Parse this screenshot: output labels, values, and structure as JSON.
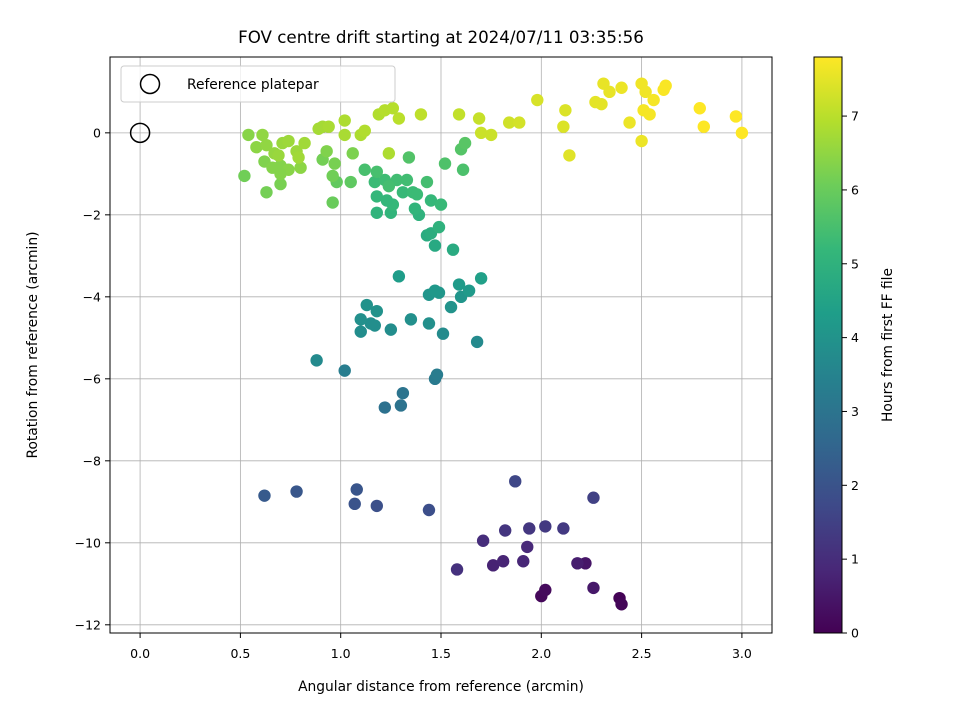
{
  "chart_data": {
    "type": "scatter",
    "title": "FOV centre drift starting at 2024/07/11 03:35:56",
    "xlabel": "Angular distance from reference (arcmin)",
    "ylabel": "Rotation from reference (arcmin)",
    "xlim": [
      -0.15,
      3.15
    ],
    "ylim": [
      -12.2,
      1.85
    ],
    "xticks": [
      0.0,
      0.5,
      1.0,
      1.5,
      2.0,
      2.5,
      3.0
    ],
    "xtick_labels": [
      "0.0",
      "0.5",
      "1.0",
      "1.5",
      "2.0",
      "2.5",
      "3.0"
    ],
    "yticks": [
      0,
      -2,
      -4,
      -6,
      -8,
      -10,
      -12
    ],
    "ytick_labels": [
      "0",
      "−2",
      "−4",
      "−6",
      "−8",
      "−10",
      "−12"
    ],
    "grid": true,
    "legend": {
      "placement": "top-left",
      "entries": [
        "Reference platepar"
      ]
    },
    "reference_point": {
      "x": 0.0,
      "y": 0.0,
      "label": "Reference platepar"
    },
    "colorbar": {
      "label": "Hours from first FF file",
      "colormap": "viridis",
      "range": [
        0,
        7.8
      ],
      "ticks": [
        0,
        1,
        2,
        3,
        4,
        5,
        6,
        7
      ],
      "tick_labels": [
        "0",
        "1",
        "2",
        "3",
        "4",
        "5",
        "6",
        "7"
      ]
    },
    "series": [
      {
        "points": [
          {
            "x": 2.39,
            "y": -11.35,
            "c": 0.05
          },
          {
            "x": 2.4,
            "y": -11.5,
            "c": 0.1
          },
          {
            "x": 2.0,
            "y": -11.3,
            "c": 0.15
          },
          {
            "x": 2.02,
            "y": -11.15,
            "c": 0.2
          },
          {
            "x": 2.22,
            "y": -10.5,
            "c": 0.45
          },
          {
            "x": 2.26,
            "y": -11.1,
            "c": 0.5
          },
          {
            "x": 2.18,
            "y": -10.5,
            "c": 0.65
          },
          {
            "x": 1.76,
            "y": -10.55,
            "c": 0.75
          },
          {
            "x": 1.81,
            "y": -10.45,
            "c": 0.8
          },
          {
            "x": 1.91,
            "y": -10.45,
            "c": 0.85
          },
          {
            "x": 1.93,
            "y": -10.1,
            "c": 0.9
          },
          {
            "x": 1.71,
            "y": -9.95,
            "c": 1.0
          },
          {
            "x": 1.58,
            "y": -10.65,
            "c": 1.1
          },
          {
            "x": 1.82,
            "y": -9.7,
            "c": 1.2
          },
          {
            "x": 1.94,
            "y": -9.65,
            "c": 1.25
          },
          {
            "x": 2.02,
            "y": -9.6,
            "c": 1.3
          },
          {
            "x": 2.11,
            "y": -9.65,
            "c": 1.3
          },
          {
            "x": 2.26,
            "y": -8.9,
            "c": 1.5
          },
          {
            "x": 1.87,
            "y": -8.5,
            "c": 1.65
          },
          {
            "x": 1.44,
            "y": -9.2,
            "c": 1.85
          },
          {
            "x": 1.18,
            "y": -9.1,
            "c": 1.9
          },
          {
            "x": 1.07,
            "y": -9.05,
            "c": 2.0
          },
          {
            "x": 1.08,
            "y": -8.7,
            "c": 2.05
          },
          {
            "x": 0.78,
            "y": -8.75,
            "c": 2.1
          },
          {
            "x": 0.62,
            "y": -8.85,
            "c": 2.2
          },
          {
            "x": 1.22,
            "y": -6.7,
            "c": 2.9
          },
          {
            "x": 1.3,
            "y": -6.65,
            "c": 2.95
          },
          {
            "x": 1.31,
            "y": -6.35,
            "c": 3.0
          },
          {
            "x": 1.47,
            "y": -6.0,
            "c": 3.2
          },
          {
            "x": 1.48,
            "y": -5.9,
            "c": 3.25
          },
          {
            "x": 1.02,
            "y": -5.8,
            "c": 3.3
          },
          {
            "x": 0.88,
            "y": -5.55,
            "c": 3.7
          },
          {
            "x": 1.68,
            "y": -5.1,
            "c": 3.7
          },
          {
            "x": 1.51,
            "y": -4.9,
            "c": 3.75
          },
          {
            "x": 1.1,
            "y": -4.85,
            "c": 3.8
          },
          {
            "x": 1.25,
            "y": -4.8,
            "c": 3.8
          },
          {
            "x": 1.17,
            "y": -4.7,
            "c": 3.85
          },
          {
            "x": 1.15,
            "y": -4.65,
            "c": 3.85
          },
          {
            "x": 1.44,
            "y": -4.65,
            "c": 3.9
          },
          {
            "x": 1.1,
            "y": -4.55,
            "c": 3.9
          },
          {
            "x": 1.35,
            "y": -4.55,
            "c": 3.9
          },
          {
            "x": 1.18,
            "y": -4.35,
            "c": 3.95
          },
          {
            "x": 1.13,
            "y": -4.2,
            "c": 3.95
          },
          {
            "x": 1.55,
            "y": -4.25,
            "c": 4.0
          },
          {
            "x": 1.6,
            "y": -4.0,
            "c": 4.05
          },
          {
            "x": 1.44,
            "y": -3.95,
            "c": 4.05
          },
          {
            "x": 1.49,
            "y": -3.9,
            "c": 4.1
          },
          {
            "x": 1.47,
            "y": -3.85,
            "c": 4.15
          },
          {
            "x": 1.64,
            "y": -3.85,
            "c": 4.2
          },
          {
            "x": 1.59,
            "y": -3.7,
            "c": 4.25
          },
          {
            "x": 1.7,
            "y": -3.55,
            "c": 4.4
          },
          {
            "x": 1.29,
            "y": -3.5,
            "c": 4.3
          },
          {
            "x": 1.47,
            "y": -2.75,
            "c": 4.7
          },
          {
            "x": 1.56,
            "y": -2.85,
            "c": 4.75
          },
          {
            "x": 1.43,
            "y": -2.5,
            "c": 4.8
          },
          {
            "x": 1.45,
            "y": -2.45,
            "c": 4.85
          },
          {
            "x": 1.49,
            "y": -2.3,
            "c": 5.0
          },
          {
            "x": 1.39,
            "y": -2.0,
            "c": 5.0
          },
          {
            "x": 1.18,
            "y": -1.95,
            "c": 5.05
          },
          {
            "x": 1.25,
            "y": -1.95,
            "c": 5.1
          },
          {
            "x": 1.37,
            "y": -1.85,
            "c": 5.1
          },
          {
            "x": 1.18,
            "y": -1.55,
            "c": 5.15
          },
          {
            "x": 1.45,
            "y": -1.65,
            "c": 5.2
          },
          {
            "x": 1.5,
            "y": -1.75,
            "c": 5.25
          },
          {
            "x": 1.26,
            "y": -1.75,
            "c": 5.2
          },
          {
            "x": 1.23,
            "y": -1.65,
            "c": 5.15
          },
          {
            "x": 1.31,
            "y": -1.45,
            "c": 5.25
          },
          {
            "x": 1.36,
            "y": -1.45,
            "c": 5.3
          },
          {
            "x": 1.38,
            "y": -1.5,
            "c": 5.3
          },
          {
            "x": 1.17,
            "y": -1.2,
            "c": 5.3
          },
          {
            "x": 1.22,
            "y": -1.15,
            "c": 5.35
          },
          {
            "x": 1.28,
            "y": -1.15,
            "c": 5.4
          },
          {
            "x": 1.33,
            "y": -1.15,
            "c": 5.4
          },
          {
            "x": 1.43,
            "y": -1.2,
            "c": 5.45
          },
          {
            "x": 1.12,
            "y": -0.9,
            "c": 5.5
          },
          {
            "x": 1.18,
            "y": -0.95,
            "c": 5.5
          },
          {
            "x": 1.24,
            "y": -1.3,
            "c": 5.45
          },
          {
            "x": 1.61,
            "y": -0.9,
            "c": 5.55
          },
          {
            "x": 1.52,
            "y": -0.75,
            "c": 5.6
          },
          {
            "x": 1.34,
            "y": -0.6,
            "c": 5.65
          },
          {
            "x": 1.6,
            "y": -0.4,
            "c": 5.7
          },
          {
            "x": 1.62,
            "y": -0.25,
            "c": 5.75
          },
          {
            "x": 1.05,
            "y": -1.2,
            "c": 5.85
          },
          {
            "x": 0.98,
            "y": -1.2,
            "c": 5.9
          },
          {
            "x": 0.96,
            "y": -1.7,
            "c": 6.0
          },
          {
            "x": 0.52,
            "y": -1.05,
            "c": 6.1
          },
          {
            "x": 0.63,
            "y": -1.45,
            "c": 6.15
          },
          {
            "x": 0.7,
            "y": -1.25,
            "c": 6.2
          },
          {
            "x": 0.96,
            "y": -1.05,
            "c": 6.1
          },
          {
            "x": 0.91,
            "y": -0.65,
            "c": 6.15
          },
          {
            "x": 0.97,
            "y": -0.75,
            "c": 6.2
          },
          {
            "x": 1.06,
            "y": -0.5,
            "c": 6.25
          },
          {
            "x": 0.93,
            "y": -0.45,
            "c": 6.3
          },
          {
            "x": 0.62,
            "y": -0.7,
            "c": 6.3
          },
          {
            "x": 0.66,
            "y": -0.85,
            "c": 6.35
          },
          {
            "x": 0.7,
            "y": -0.8,
            "c": 6.35
          },
          {
            "x": 0.74,
            "y": -0.9,
            "c": 6.4
          },
          {
            "x": 0.7,
            "y": -1.0,
            "c": 6.35
          },
          {
            "x": 0.8,
            "y": -0.85,
            "c": 6.45
          },
          {
            "x": 0.54,
            "y": -0.05,
            "c": 6.4
          },
          {
            "x": 0.58,
            "y": -0.35,
            "c": 6.45
          },
          {
            "x": 0.63,
            "y": -0.3,
            "c": 6.5
          },
          {
            "x": 0.61,
            "y": -0.05,
            "c": 6.5
          },
          {
            "x": 0.67,
            "y": -0.5,
            "c": 6.55
          },
          {
            "x": 0.69,
            "y": -0.55,
            "c": 6.6
          },
          {
            "x": 0.71,
            "y": -0.25,
            "c": 6.6
          },
          {
            "x": 0.74,
            "y": -0.2,
            "c": 6.65
          },
          {
            "x": 0.78,
            "y": -0.45,
            "c": 6.65
          },
          {
            "x": 0.79,
            "y": -0.6,
            "c": 6.7
          },
          {
            "x": 0.82,
            "y": -0.25,
            "c": 6.7
          },
          {
            "x": 0.89,
            "y": 0.1,
            "c": 6.75
          },
          {
            "x": 0.91,
            "y": 0.15,
            "c": 6.75
          },
          {
            "x": 0.94,
            "y": 0.15,
            "c": 6.8
          },
          {
            "x": 1.02,
            "y": -0.05,
            "c": 6.8
          },
          {
            "x": 1.02,
            "y": 0.3,
            "c": 6.85
          },
          {
            "x": 1.1,
            "y": -0.05,
            "c": 6.85
          },
          {
            "x": 1.12,
            "y": 0.05,
            "c": 6.9
          },
          {
            "x": 1.19,
            "y": 0.45,
            "c": 6.9
          },
          {
            "x": 1.22,
            "y": 0.55,
            "c": 6.95
          },
          {
            "x": 1.26,
            "y": 0.6,
            "c": 6.95
          },
          {
            "x": 1.24,
            "y": -0.5,
            "c": 6.85
          },
          {
            "x": 1.29,
            "y": 0.35,
            "c": 7.0
          },
          {
            "x": 1.4,
            "y": 0.45,
            "c": 7.05
          },
          {
            "x": 1.59,
            "y": 0.45,
            "c": 7.1
          },
          {
            "x": 1.69,
            "y": 0.35,
            "c": 7.15
          },
          {
            "x": 1.7,
            "y": 0.0,
            "c": 7.2
          },
          {
            "x": 1.75,
            "y": -0.05,
            "c": 7.2
          },
          {
            "x": 1.84,
            "y": 0.25,
            "c": 7.25
          },
          {
            "x": 1.89,
            "y": 0.25,
            "c": 7.3
          },
          {
            "x": 1.98,
            "y": 0.8,
            "c": 7.35
          },
          {
            "x": 2.11,
            "y": 0.15,
            "c": 7.4
          },
          {
            "x": 2.12,
            "y": 0.55,
            "c": 7.4
          },
          {
            "x": 2.14,
            "y": -0.55,
            "c": 7.45
          },
          {
            "x": 2.27,
            "y": 0.75,
            "c": 7.5
          },
          {
            "x": 2.3,
            "y": 0.7,
            "c": 7.5
          },
          {
            "x": 2.31,
            "y": 1.2,
            "c": 7.55
          },
          {
            "x": 2.34,
            "y": 1.0,
            "c": 7.55
          },
          {
            "x": 2.4,
            "y": 1.1,
            "c": 7.6
          },
          {
            "x": 2.44,
            "y": 0.25,
            "c": 7.6
          },
          {
            "x": 2.5,
            "y": 1.2,
            "c": 7.65
          },
          {
            "x": 2.5,
            "y": -0.2,
            "c": 7.6
          },
          {
            "x": 2.52,
            "y": 1.0,
            "c": 7.65
          },
          {
            "x": 2.51,
            "y": 0.55,
            "c": 7.7
          },
          {
            "x": 2.54,
            "y": 0.45,
            "c": 7.7
          },
          {
            "x": 2.56,
            "y": 0.8,
            "c": 7.7
          },
          {
            "x": 2.61,
            "y": 1.05,
            "c": 7.75
          },
          {
            "x": 2.62,
            "y": 1.15,
            "c": 7.75
          },
          {
            "x": 2.79,
            "y": 0.6,
            "c": 7.8
          },
          {
            "x": 2.81,
            "y": 0.15,
            "c": 7.8
          },
          {
            "x": 2.97,
            "y": 0.4,
            "c": 7.8
          },
          {
            "x": 3.0,
            "y": 0.0,
            "c": 7.8
          }
        ]
      }
    ]
  }
}
